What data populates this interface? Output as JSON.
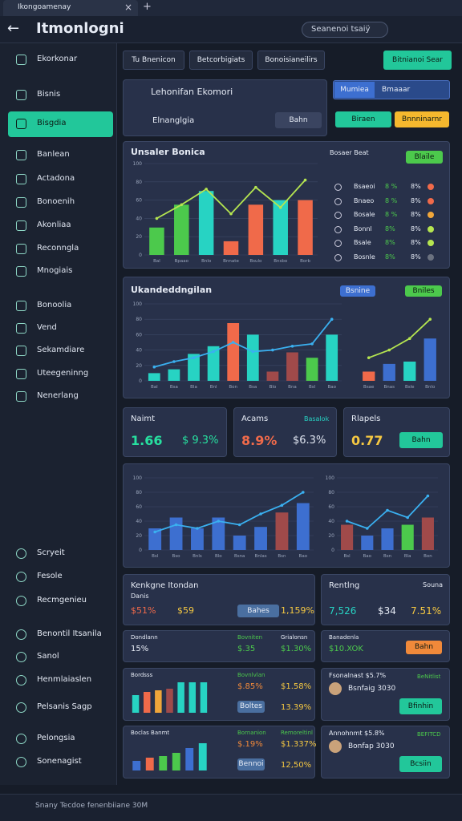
{
  "browser": {
    "tab": "Ikongoamenay",
    "bottom": "Snany Tecdoe fenenbiiane 30M"
  },
  "header": {
    "title": "Itmonlogni",
    "search": "Seanenoi tsaiÿ"
  },
  "sidebar": {
    "items": [
      "Ekorkonar",
      "Bisnis",
      "Bisgdia",
      "Banlean",
      "Actadona",
      "Bonoenih",
      "Akonliaa",
      "Reconngla",
      "Mnogiais",
      "Bonoolia",
      "Vend",
      "Sekamdiare",
      "Uteegeninng",
      "Nenerlang"
    ],
    "active": 2,
    "bottom_items": [
      "Scryeit",
      "Fesole",
      "Recmgenieu",
      "Benontil Itsanila",
      "Sanol",
      "Henmlaiaslen",
      "Pelsanis Sagp",
      "Pelongsia",
      "Sonenagist"
    ]
  },
  "toolbar": {
    "tabs": [
      "Tu Bnenicon",
      "Betcorbigiats",
      "Bonoisianeilirs"
    ],
    "action": "Bitnianoi Sear"
  },
  "overview": {
    "title": "Lehonifan Ekomori",
    "subtitle": "Elnanglgia",
    "button": "Bahn",
    "select_label": "Mumiea",
    "select_value": "Bmaaar",
    "button_green": "Biraen",
    "button_orange": "Bnnninarnr"
  },
  "panel1": {
    "title": "Unsaler Bonica",
    "legend_title": "Bosaer Beat",
    "legend_button": "Blaile",
    "legend": [
      {
        "name": "Bsaeoi",
        "a": "8 %",
        "b": "8%",
        "color": "#f06a4a"
      },
      {
        "name": "Bnaeo",
        "a": "8 %",
        "b": "8%",
        "color": "#f06a4a"
      },
      {
        "name": "Bosale",
        "a": "8 %",
        "b": "8%",
        "color": "#f0a63a"
      },
      {
        "name": "Bonnl",
        "a": "8%",
        "b": "8%",
        "color": "#b5e550"
      },
      {
        "name": "Bsale",
        "a": "8%",
        "b": "8%",
        "color": "#b5e550"
      },
      {
        "name": "Bosnle",
        "a": "8%",
        "b": "8%",
        "color": "#6b7280"
      }
    ]
  },
  "panel2": {
    "title": "Ukandeddngilan",
    "badges": [
      "Bsnine",
      "Bniles"
    ]
  },
  "charts": [
    {
      "ylim": [
        0,
        100
      ],
      "yticks": [
        0,
        20,
        40,
        60,
        80,
        100
      ],
      "categories": [
        "Bal",
        "Bpaao",
        "Bnlo",
        "Bnnate",
        "Bsulo",
        "Bnsbo",
        "Borb"
      ],
      "values": [
        30,
        55,
        70,
        15,
        55,
        60,
        60
      ],
      "colors": [
        "#4cc94c",
        "#4cc94c",
        "#27d3c3",
        "#f06a4a",
        "#f06a4a",
        "#27d3c3",
        "#f06a4a"
      ],
      "line": [
        40,
        55,
        72,
        45,
        74,
        52,
        82
      ],
      "line_color": "#b5e550"
    },
    {
      "ylim": [
        0,
        100
      ],
      "yticks": [
        0,
        20,
        40,
        60,
        80,
        100
      ],
      "categories": [
        "Bal",
        "Bsa",
        "Bla",
        "Bnl",
        "Bon",
        "Bsa",
        "Blo",
        "Bna",
        "Bsl",
        "Bao"
      ],
      "values": [
        10,
        15,
        35,
        45,
        75,
        60,
        12,
        37,
        30,
        60
      ],
      "colors": [
        "#27d3c3",
        "#27d3c3",
        "#27d3c3",
        "#27d3c3",
        "#f06a4a",
        "#27d3c3",
        "#a04a4a",
        "#a04a4a",
        "#4cc94c",
        "#27d3c3"
      ],
      "line": [
        18,
        25,
        30,
        38,
        50,
        38,
        40,
        45,
        48,
        80
      ],
      "line_color": "#3ab0f0"
    },
    {
      "ylim": [
        0,
        100
      ],
      "categories": [
        "Bsae",
        "Bnas",
        "Bsle",
        "Bnlo"
      ],
      "values": [
        12,
        22,
        25,
        55
      ],
      "colors": [
        "#f06a4a",
        "#3d6fd0",
        "#27d3c3",
        "#3d6fd0"
      ],
      "line": [
        30,
        40,
        55,
        80
      ],
      "line_color": "#b5e550"
    },
    {
      "ylim": [
        0,
        100
      ],
      "yticks": [
        0,
        20,
        40,
        60,
        80,
        100
      ],
      "categories": [
        "Bsl",
        "Bso",
        "Bnls",
        "Blo",
        "Bsna",
        "Bnlas",
        "Bsn",
        "Bao"
      ],
      "values": [
        30,
        45,
        30,
        45,
        20,
        32,
        52,
        65
      ],
      "colors": [
        "#3d6fd0",
        "#3d6fd0",
        "#3d6fd0",
        "#3d6fd0",
        "#3d6fd0",
        "#3d6fd0",
        "#a04a4a",
        "#3d6fd0"
      ],
      "line": [
        25,
        35,
        30,
        40,
        35,
        50,
        62,
        80
      ],
      "line_color": "#3ab0f0"
    },
    {
      "ylim": [
        0,
        100
      ],
      "yticks": [
        0,
        20,
        40,
        60,
        80,
        100
      ],
      "categories": [
        "Bsl",
        "Bao",
        "Bsn",
        "Bla",
        "Bon"
      ],
      "values": [
        35,
        20,
        30,
        35,
        45
      ],
      "colors": [
        "#a04a4a",
        "#3d6fd0",
        "#3d6fd0",
        "#4cc94c",
        "#a04a4a"
      ],
      "line": [
        40,
        30,
        55,
        45,
        75
      ],
      "line_color": "#3ab0f0"
    },
    {
      "ylim": [
        0,
        100
      ],
      "values": [
        55,
        65,
        70,
        75,
        95,
        95,
        95
      ],
      "colors": [
        "#27d3c3",
        "#f06a4a",
        "#f0a63a",
        "#a04a4a",
        "#27d3c3",
        "#27d3c3",
        "#27d3c3"
      ]
    },
    {
      "ylim": [
        0,
        100
      ],
      "values": [
        30,
        40,
        45,
        55,
        70,
        85
      ],
      "colors": [
        "#3d6fd0",
        "#f06a4a",
        "#4cc94c",
        "#4cc94c",
        "#3d6fd0",
        "#27d3c3"
      ]
    }
  ],
  "kpis": [
    {
      "label": "Naimt",
      "value": "1.66",
      "change": "$ 9.3%",
      "color": "#27e0a0"
    },
    {
      "label": "Acams",
      "tag": "Basalok",
      "value": "8.9%",
      "change": "$6.3%",
      "color": "#f06a4a"
    },
    {
      "label": "Rlapels",
      "value": "0.77",
      "button": "Bahn",
      "color": "#f5c842"
    }
  ],
  "tables": {
    "t1": {
      "title": "Kenkgne Itondan",
      "sub": "Danis",
      "a": "$51%",
      "b": "$59",
      "c": "1,159%",
      "button": "Bahes"
    },
    "t2": {
      "title": "Rentlng",
      "sub": "Souna",
      "a": "7,526",
      "b": "$34",
      "c": "7.51%"
    },
    "r1": {
      "title": "Dondlann",
      "a": "15%",
      "b_label": "Bovniten",
      "b": "$.35",
      "c_label": "Grialonsn",
      "c": "$1.30%"
    },
    "r2": {
      "title": "Banadenla",
      "a": "$10.XOK",
      "button": "Bahn"
    },
    "r3": {
      "title": "Bordsss",
      "b_label": "Bovnlvlan",
      "b": "$.85%",
      "c": "$1.58%",
      "button": "Boltes",
      "d": "13.39%"
    },
    "r4": {
      "title": "Fsonalnast $5.7%",
      "tag": "BeNitlist",
      "name": "Bsnfaig 3030",
      "button": "Bfinhin"
    },
    "r5": {
      "title": "Boclas Banmt",
      "b_label": "Bornanion",
      "b": "$.19%",
      "c_label": "Remoreltinl",
      "c": "$1.337%",
      "button": "Bennoi",
      "d": "12,50%"
    },
    "r6": {
      "title": "Annohnmt $5.8%",
      "tag": "BEFITCD",
      "name": "Bonfap 3030",
      "button": "Bcsiin"
    }
  }
}
